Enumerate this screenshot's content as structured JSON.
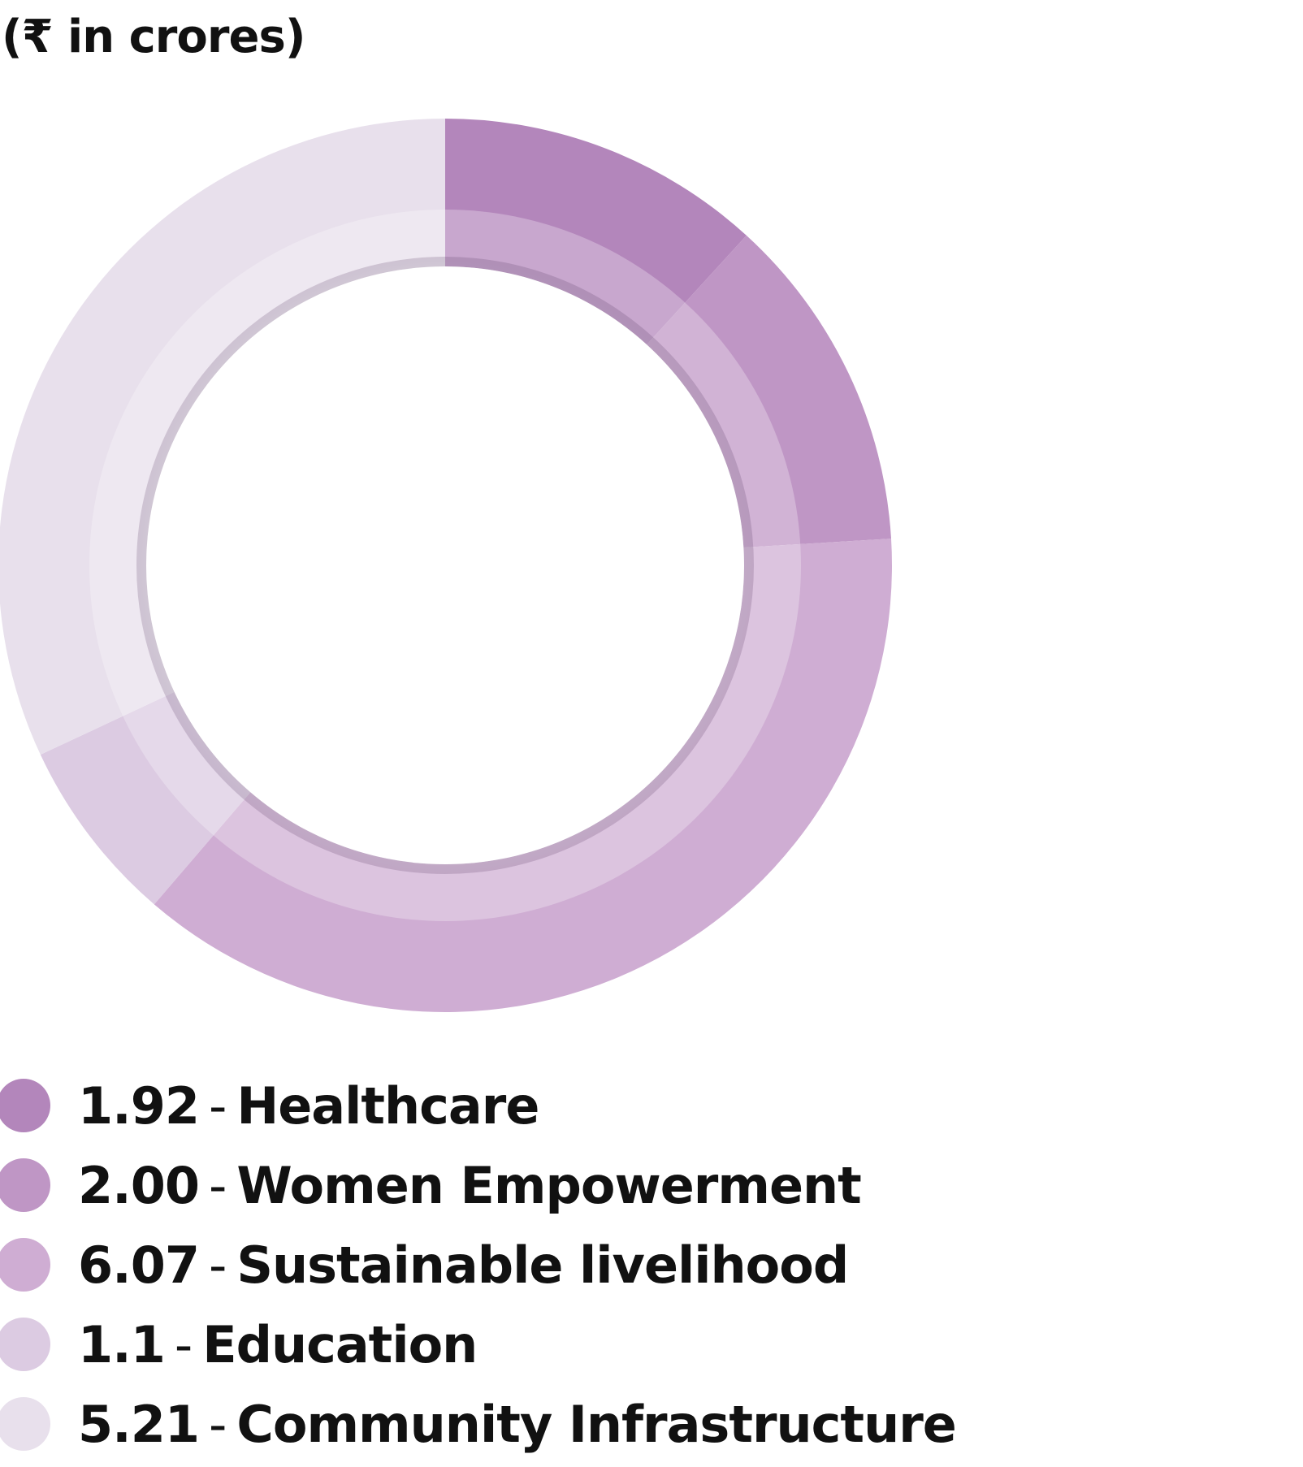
{
  "chart_data": {
    "type": "pie",
    "subtype": "donut",
    "unit_label": "(₹ in crores)",
    "separator": "-",
    "categories": [
      "Healthcare",
      "Women Empowerment",
      "Sustainable livelihood",
      "Education",
      "Community Infrastructure"
    ],
    "values": [
      1.92,
      2.0,
      6.07,
      1.1,
      5.21
    ],
    "value_labels": [
      "1.92",
      "2.00",
      "6.07",
      "1.1",
      "5.21"
    ],
    "colors": [
      "#b386bb",
      "#bf96c5",
      "#cfadd3",
      "#dccbe2",
      "#e8e0ec"
    ],
    "legend_position": "bottom-left"
  }
}
